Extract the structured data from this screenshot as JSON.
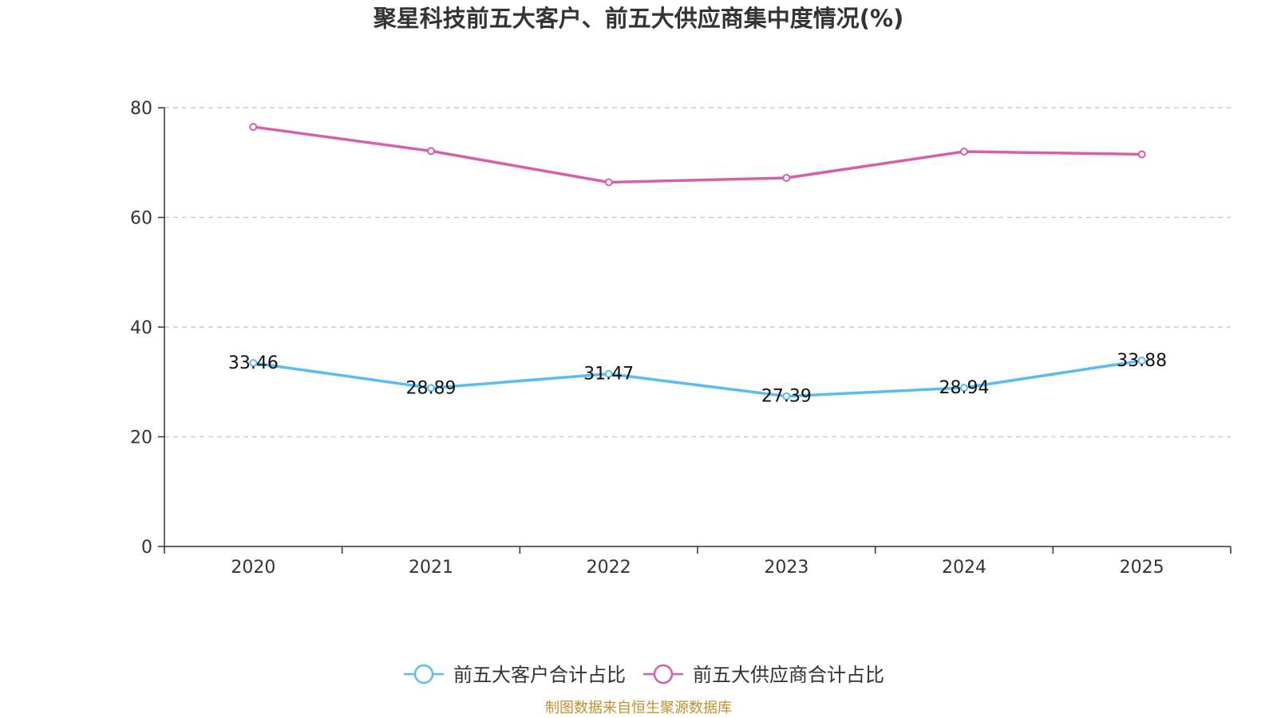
{
  "chart_data": {
    "type": "line",
    "title": "聚星科技前五大客户、前五大供应商集中度情况(%)",
    "xlabel": "",
    "ylabel": "",
    "categories": [
      "2020",
      "2021",
      "2022",
      "2023",
      "2024",
      "2025"
    ],
    "ylim": [
      0,
      80
    ],
    "yticks": [
      "0",
      "20",
      "40",
      "60",
      "80"
    ],
    "grid": true,
    "legend_position": "bottom-center",
    "series": [
      {
        "name": "前五大客户合计占比",
        "color": "#5bbcf0",
        "values": [
          33.46,
          28.89,
          31.47,
          27.39,
          28.94,
          33.88
        ],
        "labels": [
          "33.46",
          "28.89",
          "31.47",
          "27.39",
          "28.94",
          "33.88"
        ],
        "show_labels": true
      },
      {
        "name": "前五大供应商合计占比",
        "color": "#d65fa8",
        "values": [
          76.5,
          72.1,
          66.4,
          67.2,
          72.0,
          71.5
        ],
        "show_labels": false
      }
    ],
    "source": "制图数据来自恒生聚源数据库"
  }
}
